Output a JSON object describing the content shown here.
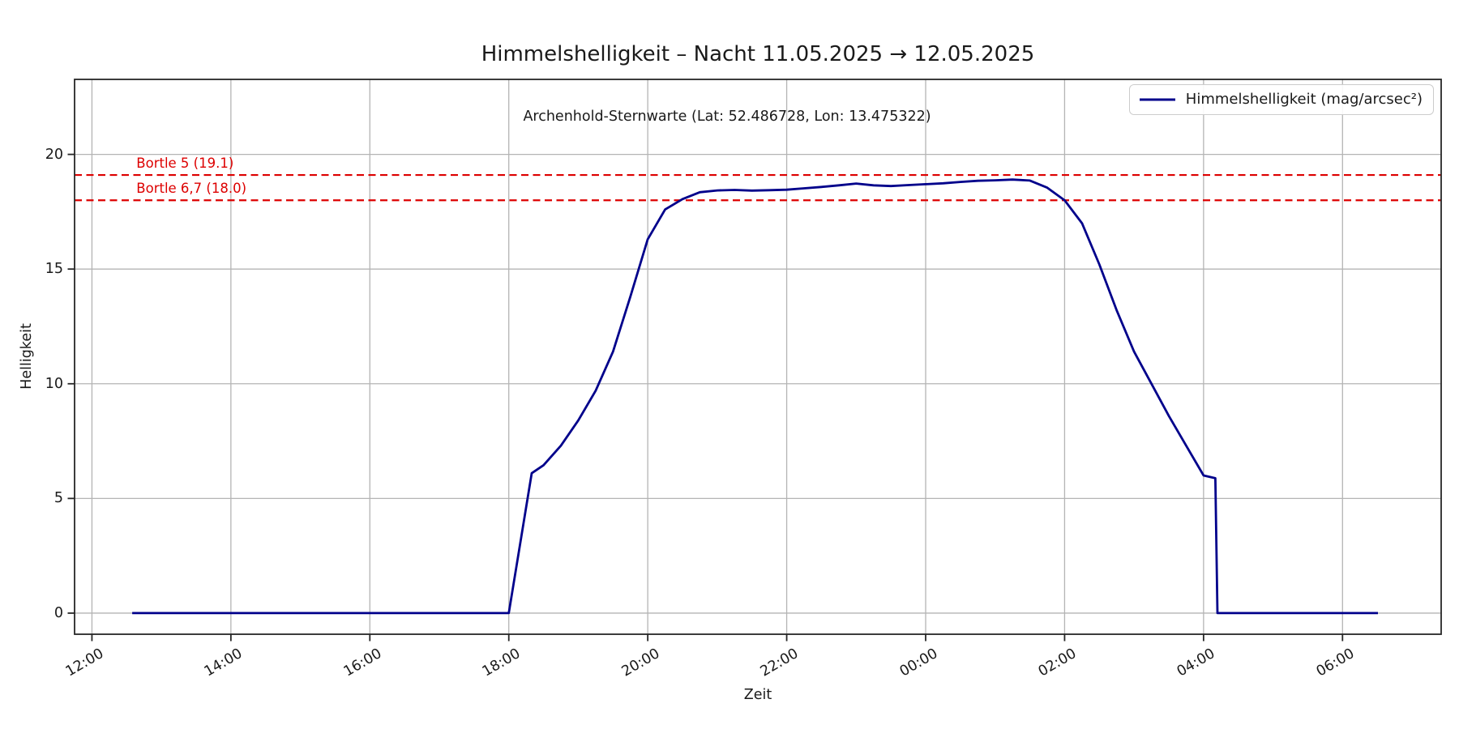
{
  "figure": {
    "background": "#ffffff"
  },
  "chart_data": {
    "type": "line",
    "title": "Himmelshelligkeit – Nacht 11.05.2025 → 12.05.2025",
    "subtitle": "Archenhold-Sternwarte (Lat: 52.486728, Lon: 13.475322)",
    "xlabel": "Zeit",
    "ylabel": "Helligkeit",
    "x_unit": "hours after 12:00",
    "xlim": [
      -0.25,
      19.42
    ],
    "ylim": [
      -0.92,
      23.27
    ],
    "grid": true,
    "xticks": [
      {
        "h": 0,
        "label": "12:00"
      },
      {
        "h": 2,
        "label": "14:00"
      },
      {
        "h": 4,
        "label": "16:00"
      },
      {
        "h": 6,
        "label": "18:00"
      },
      {
        "h": 8,
        "label": "20:00"
      },
      {
        "h": 10,
        "label": "22:00"
      },
      {
        "h": 12,
        "label": "00:00"
      },
      {
        "h": 14,
        "label": "02:00"
      },
      {
        "h": 16,
        "label": "04:00"
      },
      {
        "h": 18,
        "label": "06:00"
      }
    ],
    "yticks": [
      0,
      5,
      10,
      15,
      20
    ],
    "legend": {
      "position": "upper right",
      "entries": [
        {
          "label": "Himmelshelligkeit (mag/arcsec²)",
          "color": "#00008b"
        }
      ]
    },
    "hlines": [
      {
        "label": "Bortle 5 (19.1)",
        "value": 19.1,
        "color": "#dd0000",
        "style": "dashed"
      },
      {
        "label": "Bortle 6,7 (18.0)",
        "value": 18.0,
        "color": "#dd0000",
        "style": "dashed"
      }
    ],
    "series": [
      {
        "name": "Himmelshelligkeit (mag/arcsec²)",
        "color": "#00008b",
        "points": [
          [
            0.58,
            0
          ],
          [
            6.0,
            0
          ],
          [
            6.33,
            6.1
          ],
          [
            6.5,
            6.45
          ],
          [
            6.75,
            7.3
          ],
          [
            7.0,
            8.4
          ],
          [
            7.25,
            9.7
          ],
          [
            7.5,
            11.4
          ],
          [
            7.75,
            13.8
          ],
          [
            8.0,
            16.3
          ],
          [
            8.25,
            17.6
          ],
          [
            8.5,
            18.05
          ],
          [
            8.75,
            18.35
          ],
          [
            9.0,
            18.43
          ],
          [
            9.25,
            18.45
          ],
          [
            9.5,
            18.42
          ],
          [
            9.75,
            18.44
          ],
          [
            10.0,
            18.46
          ],
          [
            10.25,
            18.52
          ],
          [
            10.5,
            18.58
          ],
          [
            10.75,
            18.65
          ],
          [
            11.0,
            18.73
          ],
          [
            11.25,
            18.65
          ],
          [
            11.5,
            18.62
          ],
          [
            11.75,
            18.66
          ],
          [
            12.0,
            18.7
          ],
          [
            12.25,
            18.74
          ],
          [
            12.5,
            18.8
          ],
          [
            12.75,
            18.85
          ],
          [
            13.0,
            18.87
          ],
          [
            13.25,
            18.9
          ],
          [
            13.5,
            18.86
          ],
          [
            13.75,
            18.55
          ],
          [
            14.0,
            18.0
          ],
          [
            14.25,
            17.0
          ],
          [
            14.5,
            15.2
          ],
          [
            14.75,
            13.2
          ],
          [
            15.0,
            11.4
          ],
          [
            15.25,
            10.0
          ],
          [
            15.5,
            8.6
          ],
          [
            15.75,
            7.3
          ],
          [
            16.0,
            6.0
          ],
          [
            16.17,
            5.88
          ],
          [
            16.2,
            0
          ],
          [
            18.51,
            0
          ]
        ]
      }
    ]
  },
  "style": {
    "grid_color": "#b4b4b4",
    "spine_color": "#262626",
    "tick_color": "#262626",
    "text_color": "#1a1a1a",
    "line_color": "#00008b",
    "hline_color": "#dd0000"
  }
}
